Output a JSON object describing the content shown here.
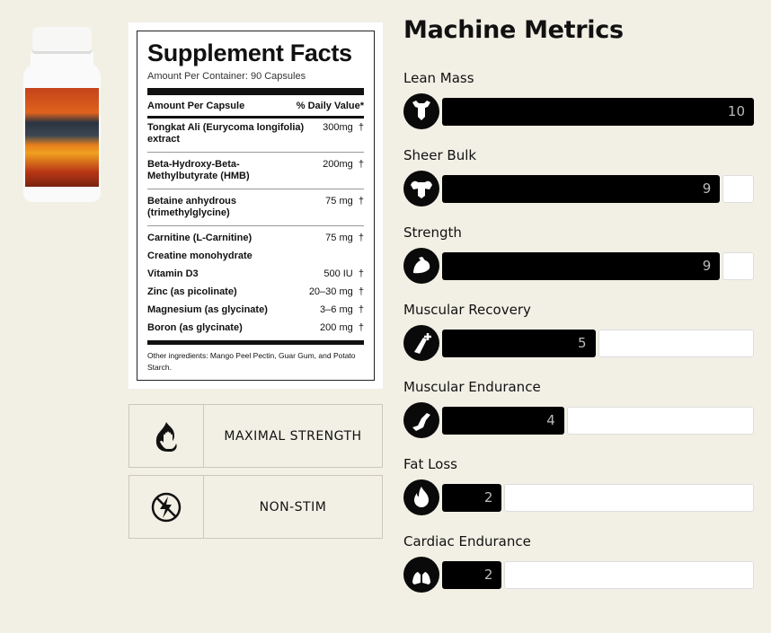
{
  "facts": {
    "title": "Supplement Facts",
    "subtitle": "Amount Per Container: 90 Capsules",
    "col1": "Amount Per Capsule",
    "col2": "% Daily Value*",
    "rows": [
      {
        "name": "Tongkat Ali (Eurycoma longifolia) extract",
        "amount": "300mg",
        "dv": "†",
        "sep": true
      },
      {
        "name": "Beta-Hydroxy-Beta-Methylbutyrate (HMB)",
        "amount": "200mg",
        "dv": "†",
        "sep": true
      },
      {
        "name": "Betaine anhydrous (trimethylglycine)",
        "amount": "75 mg",
        "dv": "†",
        "sep": true
      },
      {
        "name": "Carnitine (L-Carnitine)",
        "amount": "75 mg",
        "dv": "†"
      },
      {
        "name": "Creatine monohydrate",
        "amount": "",
        "dv": ""
      },
      {
        "name": "Vitamin D3",
        "amount": "500 IU",
        "dv": "†"
      },
      {
        "name": "Zinc (as picolinate)",
        "amount": "20–30 mg",
        "dv": "†"
      },
      {
        "name": "Magnesium (as glycinate)",
        "amount": "3–6 mg",
        "dv": "†"
      },
      {
        "name": "Boron (as glycinate)",
        "amount": "200 mg",
        "dv": "†"
      }
    ],
    "other": "Other ingredients: Mango Peel Pectin, Guar Gum, and Potato Starch."
  },
  "features": [
    {
      "label": "MAXIMAL STRENGTH",
      "icon": "fist-flame-icon"
    },
    {
      "label": "NON-STIM",
      "icon": "no-lightning-icon"
    }
  ],
  "metrics_title": "Machine Metrics",
  "metric_max": 10,
  "metrics": [
    {
      "label": "Lean Mass",
      "value": 10,
      "icon": "torso-icon"
    },
    {
      "label": "Sheer Bulk",
      "value": 9,
      "icon": "bodybuilder-icon"
    },
    {
      "label": "Strength",
      "value": 9,
      "icon": "flexed-arm-icon"
    },
    {
      "label": "Muscular Recovery",
      "value": 5,
      "icon": "muscle-plus-icon"
    },
    {
      "label": "Muscular Endurance",
      "value": 4,
      "icon": "running-leg-icon"
    },
    {
      "label": "Fat Loss",
      "value": 2,
      "icon": "flame-icon"
    },
    {
      "label": "Cardiac Endurance",
      "value": 2,
      "icon": "lungs-icon"
    }
  ]
}
